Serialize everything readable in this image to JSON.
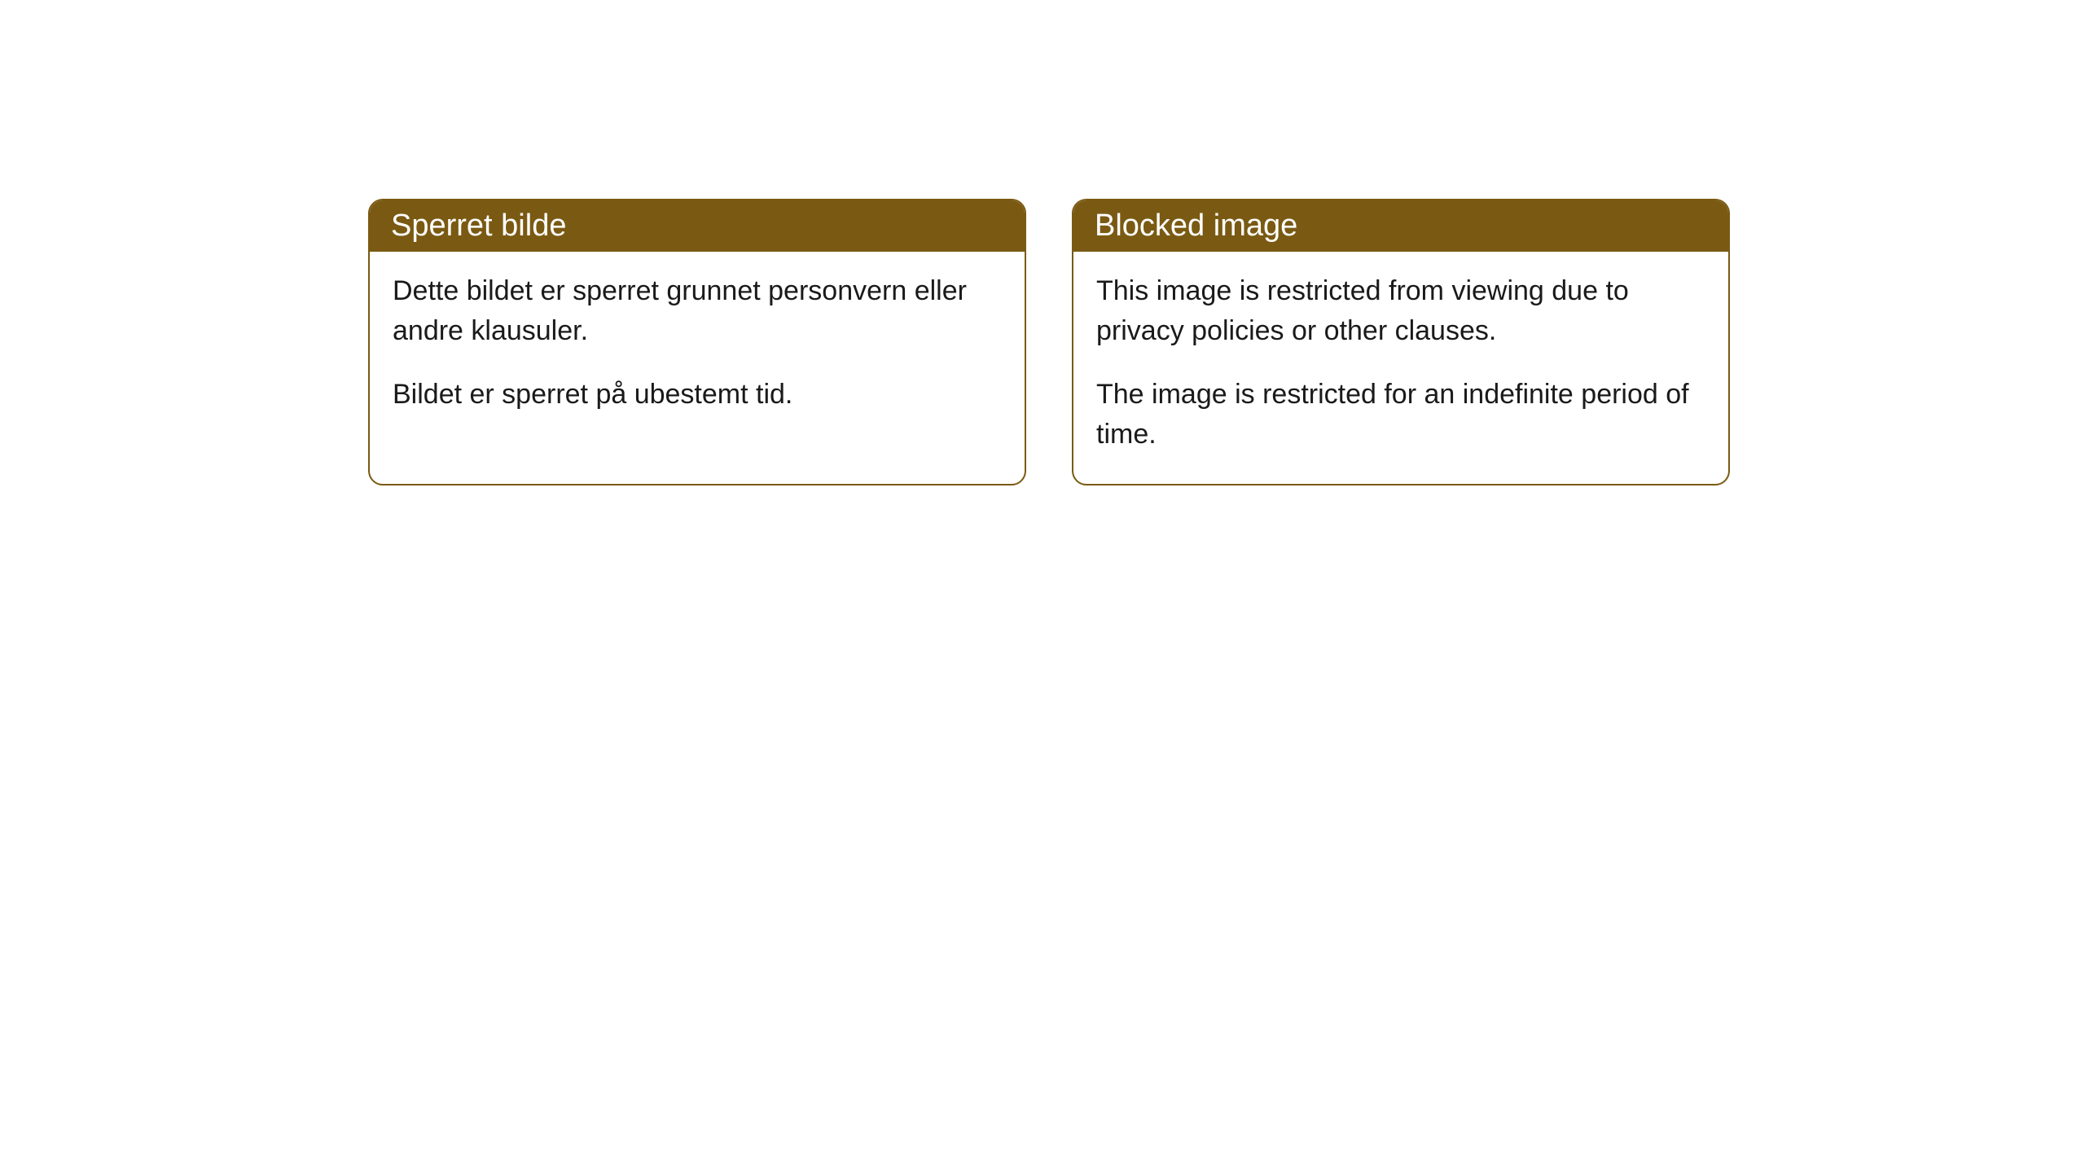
{
  "cards": [
    {
      "title": "Sperret bilde",
      "paragraph1": "Dette bildet er sperret grunnet personvern eller andre klausuler.",
      "paragraph2": "Bildet er sperret på ubestemt tid."
    },
    {
      "title": "Blocked image",
      "paragraph1": "This image is restricted from viewing due to privacy policies or other clauses.",
      "paragraph2": "The image is restricted for an indefinite period of time."
    }
  ],
  "styling": {
    "card_border_color": "#7a5a13",
    "card_header_bg": "#7a5a13",
    "card_header_text_color": "#ffffff",
    "card_body_bg": "#ffffff",
    "card_body_text_color": "#1a1a1a",
    "card_border_radius": 18,
    "title_fontsize": 38,
    "body_fontsize": 34,
    "page_bg": "#ffffff"
  }
}
